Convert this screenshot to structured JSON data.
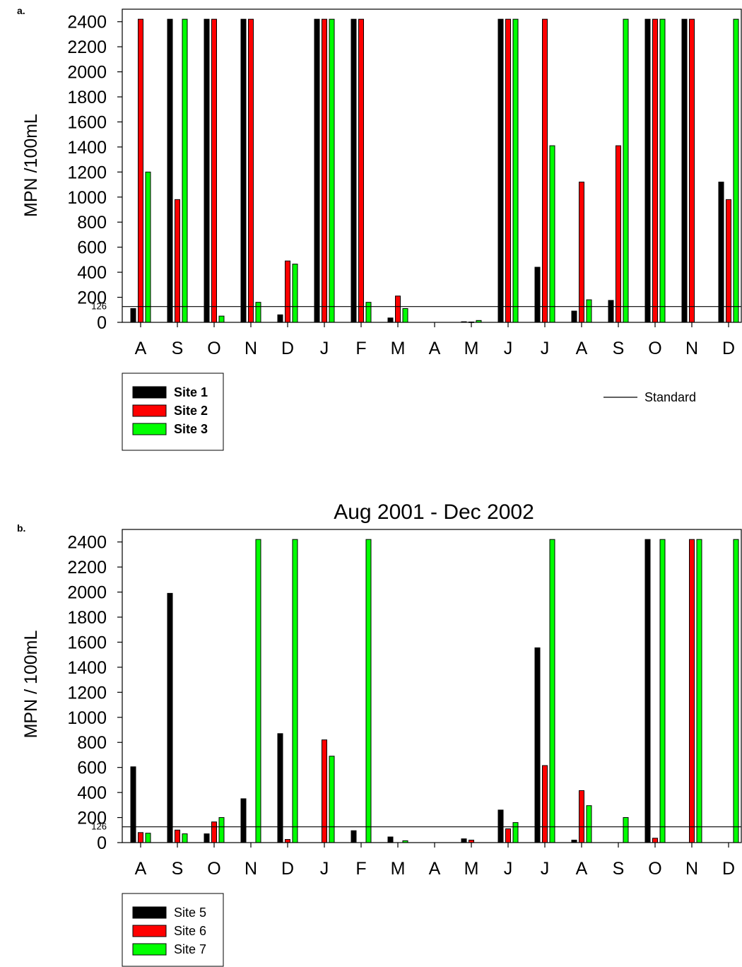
{
  "chart_data": [
    {
      "type": "bar",
      "panel_label": "a.",
      "title": "",
      "xlabel": "",
      "ylabel": "MPN /100mL",
      "ylim": [
        0,
        2500
      ],
      "yticks": [
        0,
        200,
        400,
        600,
        800,
        1000,
        1200,
        1400,
        1600,
        1800,
        2000,
        2200,
        2400
      ],
      "categories": [
        "A",
        "S",
        "O",
        "N",
        "D",
        "J",
        "F",
        "M",
        "A",
        "M",
        "J",
        "J",
        "A",
        "S",
        "O",
        "N",
        "D"
      ],
      "series": [
        {
          "name": "Site 1",
          "color": "#000000",
          "values": [
            110,
            2420,
            2420,
            2420,
            60,
            2420,
            2420,
            35,
            0,
            5,
            2420,
            440,
            90,
            175,
            2420,
            2420,
            1120
          ]
        },
        {
          "name": "Site 2",
          "color": "#ff0000",
          "values": [
            2420,
            980,
            2420,
            2420,
            490,
            2420,
            2420,
            210,
            0,
            3,
            2420,
            2420,
            1120,
            1410,
            2420,
            2420,
            980
          ]
        },
        {
          "name": "Site 3",
          "color": "#00ff00",
          "values": [
            1200,
            2420,
            50,
            160,
            465,
            2420,
            160,
            110,
            0,
            15,
            2420,
            1410,
            180,
            2420,
            2420,
            0,
            2420
          ]
        }
      ],
      "standard": {
        "value": 126,
        "label": "126",
        "legend_label": "Standard"
      },
      "legend_bold": true,
      "grid": false,
      "legend_position": "bottom-left"
    },
    {
      "type": "bar",
      "panel_label": "b.",
      "title": "Aug 2001 - Dec 2002",
      "xlabel": "",
      "ylabel": "MPN / 100mL",
      "ylim": [
        0,
        2500
      ],
      "yticks": [
        0,
        200,
        400,
        600,
        800,
        1000,
        1200,
        1400,
        1600,
        1800,
        2000,
        2200,
        2400
      ],
      "categories": [
        "A",
        "S",
        "O",
        "N",
        "D",
        "J",
        "F",
        "M",
        "A",
        "M",
        "J",
        "J",
        "A",
        "S",
        "O",
        "N",
        "D"
      ],
      "series": [
        {
          "name": "Site 5",
          "color": "#000000",
          "values": [
            605,
            1990,
            70,
            350,
            870,
            0,
            95,
            45,
            0,
            30,
            260,
            1555,
            20,
            0,
            2420,
            0,
            0
          ]
        },
        {
          "name": "Site 6",
          "color": "#ff0000",
          "values": [
            80,
            100,
            165,
            0,
            25,
            820,
            0,
            0,
            0,
            20,
            110,
            615,
            415,
            0,
            35,
            2420,
            0
          ]
        },
        {
          "name": "Site 7",
          "color": "#00ff00",
          "values": [
            75,
            70,
            200,
            2420,
            2420,
            690,
            2420,
            15,
            0,
            0,
            160,
            2420,
            295,
            200,
            2420,
            2420,
            2420
          ]
        }
      ],
      "standard": {
        "value": 126,
        "label": "126",
        "legend_label": ""
      },
      "legend_bold": false,
      "grid": false,
      "legend_position": "bottom-left"
    }
  ]
}
